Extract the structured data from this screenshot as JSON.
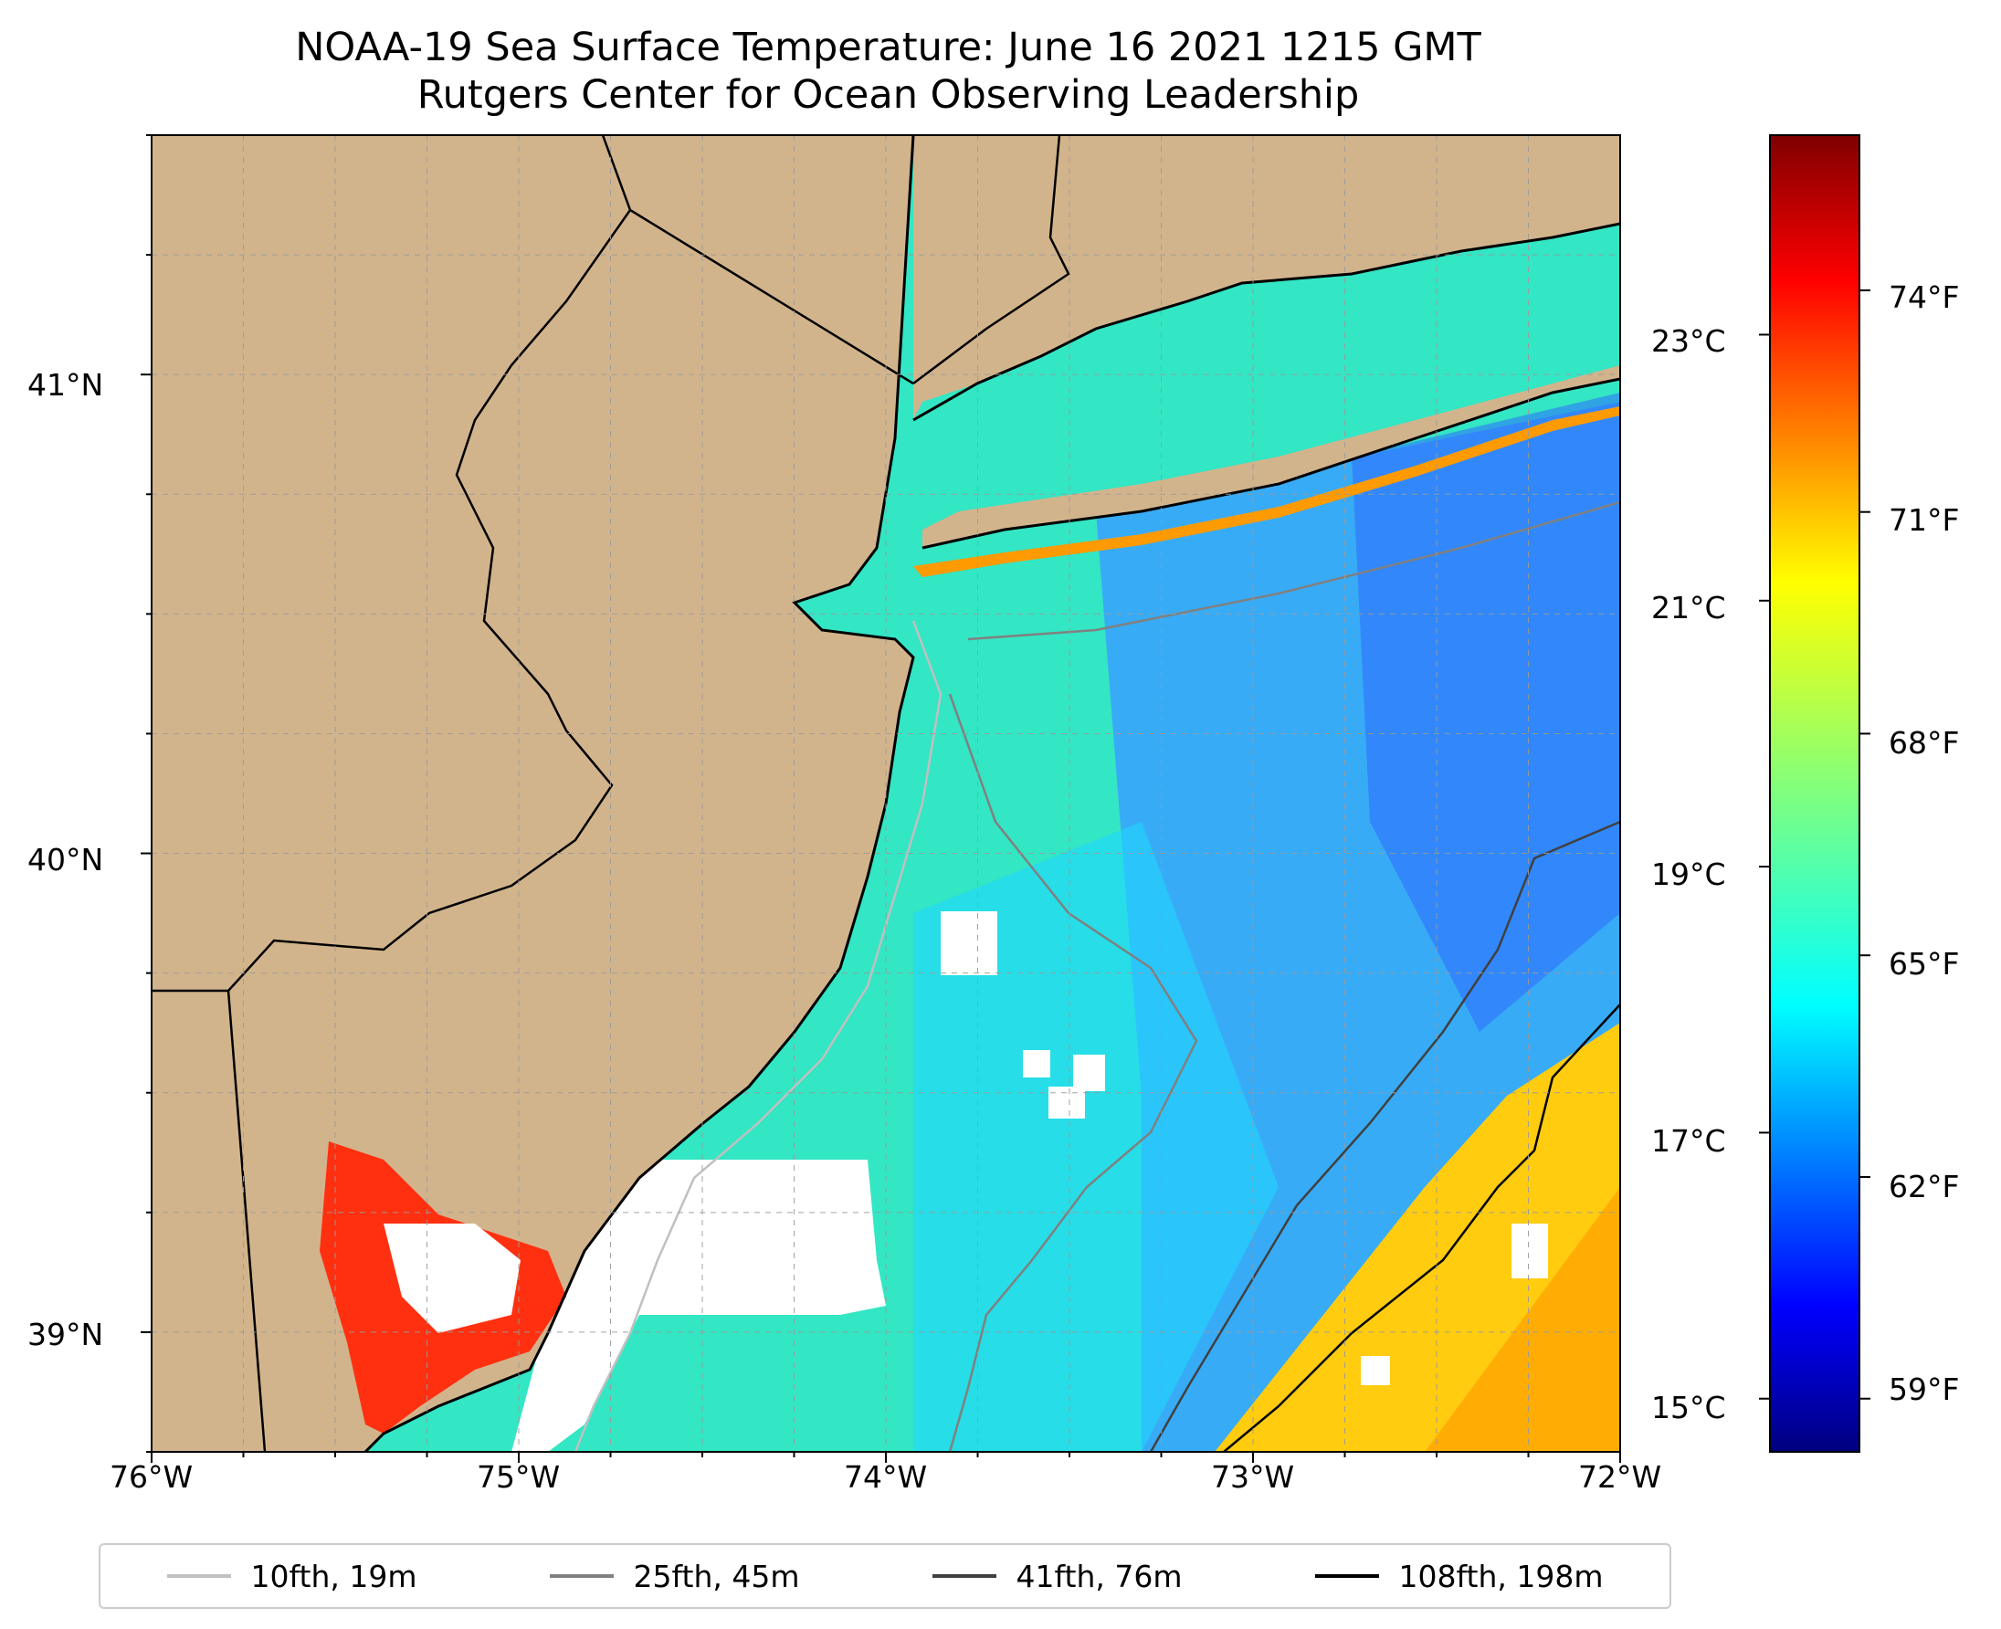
{
  "map": {
    "title": "NOAA-19 Sea Surface Temperature: June 16 2021 1215 GMT",
    "subtitle": "Rutgers Center for Ocean Observing Leadership",
    "lon_range": [
      -76,
      -72
    ],
    "lat_range": [
      38.75,
      41.5
    ],
    "x_ticks": [
      {
        "value": -76,
        "label": "76°W"
      },
      {
        "value": -75,
        "label": "75°W"
      },
      {
        "value": -74,
        "label": "74°W"
      },
      {
        "value": -73,
        "label": "73°W"
      },
      {
        "value": -72,
        "label": "72°W"
      }
    ],
    "y_ticks": [
      {
        "value": 39,
        "label": "39°N"
      },
      {
        "value": 40,
        "label": "40°N"
      },
      {
        "value": 41,
        "label": "41°N"
      }
    ],
    "colors": {
      "land": "#d2b48c",
      "coast": "#000000",
      "grid": "#9a9a9a"
    }
  },
  "colorbar": {
    "colormap": "jet",
    "celsius_ticks": [
      {
        "value": 15,
        "label": "15°C"
      },
      {
        "value": 17,
        "label": "17°C"
      },
      {
        "value": 19,
        "label": "19°C"
      },
      {
        "value": 21,
        "label": "21°C"
      },
      {
        "value": 23,
        "label": "23°C"
      }
    ],
    "fahrenheit_ticks": [
      {
        "value": 59,
        "label": "59°F"
      },
      {
        "value": 62,
        "label": "62°F"
      },
      {
        "value": 65,
        "label": "65°F"
      },
      {
        "value": 68,
        "label": "68°F"
      },
      {
        "value": 71,
        "label": "71°F"
      },
      {
        "value": 74,
        "label": "74°F"
      }
    ],
    "range_c": [
      14.6,
      24.5
    ]
  },
  "legend": [
    {
      "label": "10fth, 19m",
      "color": "#c0c0c0"
    },
    {
      "label": "25fth, 45m",
      "color": "#808080"
    },
    {
      "label": "41fth, 76m",
      "color": "#404040"
    },
    {
      "label": "108fth, 198m",
      "color": "#000000"
    }
  ]
}
